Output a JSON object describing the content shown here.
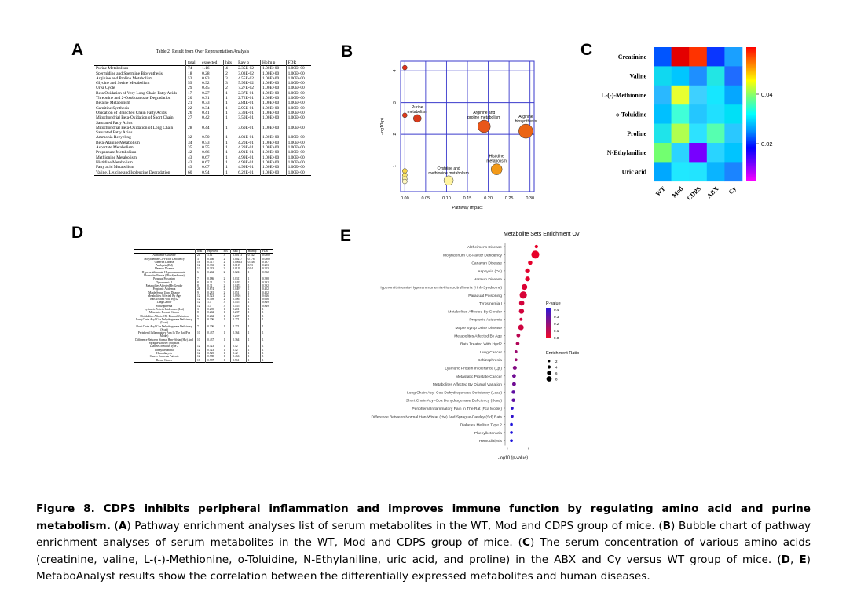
{
  "panels": {
    "a": "A",
    "b": "B",
    "c": "C",
    "d": "D",
    "e": "E"
  },
  "table_a": {
    "title": "Table 2: Result from Over Representation Analysis",
    "headers": [
      "",
      "total",
      "expected",
      "hits",
      "Raw p",
      "Holm p",
      "FDR"
    ],
    "rows": [
      [
        "Purine Metabolism",
        "74",
        "1.16",
        "4",
        "2.35E-02",
        "1.00E+00",
        "1.00E+00"
      ],
      [
        "Spermidine and Spermine Biosynthesis",
        "18",
        "0.28",
        "2",
        "3.03E-02",
        "1.00E+00",
        "1.00E+00"
      ],
      [
        "Arginine and Proline Metabolism",
        "53",
        "0.83",
        "3",
        "4.55E-02",
        "1.00E+00",
        "1.00E+00"
      ],
      [
        "Glycine and Serine Metabolism",
        "59",
        "0.92",
        "3",
        "5.95E-02",
        "1.00E+00",
        "1.00E+00"
      ],
      [
        "Urea Cycle",
        "29",
        "0.45",
        "2",
        "7.27E-02",
        "1.00E+00",
        "1.00E+00"
      ],
      [
        "Beta Oxidation of Very Long Chain Fatty Acids",
        "17",
        "0.27",
        "1",
        "2.37E-01",
        "1.00E+00",
        "1.00E+00"
      ],
      [
        "Threonine and 2-Oxobutanoate Degradation",
        "20",
        "0.31",
        "1",
        "2.72E-01",
        "1.00E+00",
        "1.00E+00"
      ],
      [
        "Betaine Metabolism",
        "21",
        "0.33",
        "1",
        "2.84E-01",
        "1.00E+00",
        "1.00E+00"
      ],
      [
        "Carnitine Synthesis",
        "22",
        "0.34",
        "1",
        "2.95E-01",
        "1.00E+00",
        "1.00E+00"
      ],
      [
        "Oxidation of Branched Chain Fatty Acids",
        "26",
        "0.41",
        "1",
        "3.39E-01",
        "1.00E+00",
        "1.00E+00"
      ],
      [
        "Mitochondrial Beta-Oxidation of Short Chain Saturated Fatty Acids",
        "27",
        "0.42",
        "1",
        "3.50E-01",
        "1.00E+00",
        "1.00E+00"
      ],
      [
        "Mitochondrial Beta-Oxidation of Long Chain Saturated Fatty Acids",
        "28",
        "0.44",
        "1",
        "3.60E-01",
        "1.00E+00",
        "1.00E+00"
      ],
      [
        "Ammonia Recycling",
        "32",
        "0.50",
        "1",
        "4.01E-01",
        "1.00E+00",
        "1.00E+00"
      ],
      [
        "Beta-Alanine Metabolism",
        "34",
        "0.53",
        "1",
        "4.20E-01",
        "1.00E+00",
        "1.00E+00"
      ],
      [
        "Aspartate Metabolism",
        "35",
        "0.55",
        "1",
        "4.29E-01",
        "1.00E+00",
        "1.00E+00"
      ],
      [
        "Propanoate Metabolism",
        "42",
        "0.66",
        "1",
        "4.91E-01",
        "1.00E+00",
        "1.00E+00"
      ],
      [
        "Methionine Metabolism",
        "43",
        "0.67",
        "1",
        "4.99E-01",
        "1.00E+00",
        "1.00E+00"
      ],
      [
        "Histidine Metabolism",
        "43",
        "0.67",
        "1",
        "4.99E-01",
        "1.00E+00",
        "1.00E+00"
      ],
      [
        "Fatty acid Metabolism",
        "43",
        "0.67",
        "1",
        "4.99E-01",
        "1.00E+00",
        "1.00E+00"
      ],
      [
        "Valine, Leucine and Isoleucine Degradation",
        "60",
        "0.94",
        "1",
        "6.22E-01",
        "1.00E+00",
        "1.00E+00"
      ]
    ]
  },
  "table_d": {
    "headers": [
      "",
      "total",
      "expected",
      "hits",
      "Raw p",
      "Holm p",
      "FDR"
    ],
    "rows": [
      [
        "Alzheimer's Disease",
        "21",
        "1.01",
        "3",
        "0.00173",
        "0.142",
        "0.0889"
      ],
      [
        "Molybdenum Co-Factor Deficiency",
        "3",
        "0.166",
        "2",
        "0.00217",
        "0.176",
        "0.0889"
      ],
      [
        "Canavan Disease",
        "16",
        "0.417",
        "2",
        "0.00683",
        "0.546",
        "0.187"
      ],
      [
        "Asphyxia (Dd)",
        "12",
        "0.333",
        "2",
        "0.0119",
        "0.93",
        "0.203"
      ],
      [
        "Harmup Disease",
        "12",
        "0.333",
        "2",
        "0.0119",
        "0.94",
        "0.203"
      ],
      [
        "Hyperornithinemia-Hyperammonemia-Homocitrullinuria (Hhh-Syndrome)",
        "6",
        "0.262",
        "2",
        "0.0241",
        "1",
        "0.332"
      ],
      [
        "Paraquat Poisoning",
        "7",
        "0.186",
        "2",
        "0.0311",
        "1",
        "0.388"
      ],
      [
        "Tyrosinemia I",
        "8",
        "0.31",
        "2",
        "0.0433",
        "1",
        "0.392"
      ],
      [
        "Metabolites Affected By Gender",
        "8",
        "0.31",
        "2",
        "0.0453",
        "1",
        "0.392"
      ],
      [
        "Propionic Acidemia",
        "26",
        "0.874",
        "2",
        "0.0497",
        "1",
        "0.402"
      ],
      [
        "Maple Syrup Urine Disease",
        "9",
        "0.281",
        "2",
        "0.051",
        "1",
        "0.402"
      ],
      [
        "Metabolites Affected By Age",
        "12",
        "0.523",
        "2",
        "0.0916",
        "1",
        "0.626"
      ],
      [
        "Rats Treated With Hgcl2",
        "12",
        "0.569",
        "2",
        "0.106",
        "1",
        "0.666"
      ],
      [
        "Lung Cancer",
        "12",
        "1.4",
        "3",
        "0.155",
        "1",
        "0.849"
      ],
      [
        "Schizophrenia",
        "12",
        "1.4",
        "3",
        "0.155",
        "1",
        "0.849"
      ],
      [
        "Lysinuric Protein Intolerance (Lpi)",
        "3",
        "0.239",
        "1",
        "0.201",
        "1",
        "1"
      ],
      [
        "Metastatic Prostate Cancer",
        "8",
        "0.262",
        "1",
        "0.237",
        "1",
        "1"
      ],
      [
        "Metabolites Affected By Diurnal Variation",
        "6",
        "0.262",
        "1",
        "0.237",
        "1",
        "1"
      ],
      [
        "Long Chain Acyl-Coa Dehydrogenase Deficiency (Lcad)",
        "7",
        "0.306",
        "1",
        "0.271",
        "1",
        "1"
      ],
      [
        "Short Chain Acyl-Coa Dehydrogenase Deficiency (Scad)",
        "7",
        "0.306",
        "1",
        "0.271",
        "1",
        "1"
      ],
      [
        "Peripheral Inflammatory Pain In The Rat (Fca Model)",
        "10",
        "0.437",
        "1",
        "0.364",
        "1",
        "1"
      ],
      [
        "Difference Between Normal Han-Wistar (Hw) And Sprague-Dawley (Sd) Rats",
        "10",
        "0.437",
        "1",
        "0.364",
        "1",
        "1"
      ],
      [
        "Diabetes Mellitus Type 2",
        "12",
        "0.523",
        "1",
        "0.42",
        "1",
        "1"
      ],
      [
        "Phenylketonuria",
        "12",
        "0.523",
        "1",
        "0.42",
        "1",
        "1"
      ],
      [
        "Hemodialysis",
        "12",
        "0.525",
        "1",
        "0.42",
        "1",
        "1"
      ],
      [
        "Cancer Cachexia Patients",
        "12",
        "0.788",
        "1",
        "0.466",
        "1",
        "1"
      ],
      [
        "Breast Cancer",
        "18",
        "0.787",
        "1",
        "0.561",
        "1",
        "1"
      ]
    ]
  },
  "chart_b": {
    "type": "scatter",
    "xlabel": "Pathway Impact",
    "ylabel": "-log10(p)",
    "x_ticks": [
      "0.00",
      "0.05",
      "0.10",
      "0.15",
      "0.20",
      "0.25",
      "0.30"
    ],
    "y_ticks": [
      "1",
      "2",
      "3",
      "4"
    ],
    "colors": {
      "high": "#d62e14",
      "mid": "#f07a12",
      "low": "#ffffa8",
      "point": "#e03a1a"
    },
    "points": [
      {
        "x": 0.0,
        "y": 4.1,
        "size": 3,
        "fill": "#e0301a",
        "label": ""
      },
      {
        "x": 0.0,
        "y": 2.6,
        "size": 3,
        "fill": "#e03b1a",
        "label": ""
      },
      {
        "x": 0.03,
        "y": 2.5,
        "size": 5,
        "fill": "#d93a1a",
        "label": "Purine metabolism"
      },
      {
        "x": 0.19,
        "y": 2.25,
        "size": 8,
        "fill": "#e8561a",
        "label": "Arginine and proline metabolism"
      },
      {
        "x": 0.29,
        "y": 2.1,
        "size": 9,
        "fill": "#eb6515",
        "label": "Arginine biosynthesis"
      },
      {
        "x": 0.22,
        "y": 0.9,
        "size": 7,
        "fill": "#f39a18",
        "label": "Histidine metabolism"
      },
      {
        "x": 0.105,
        "y": 0.55,
        "size": 6,
        "fill": "#fff4a0",
        "label": "Cysteine and methionine metabolism"
      },
      {
        "x": 0.0,
        "y": 0.85,
        "size": 3,
        "fill": "#f9d64a",
        "label": ""
      },
      {
        "x": 0.0,
        "y": 0.72,
        "size": 3,
        "fill": "#fde770",
        "label": ""
      },
      {
        "x": 0.0,
        "y": 0.6,
        "size": 3,
        "fill": "#fff2a0",
        "label": ""
      },
      {
        "x": 0.0,
        "y": 0.52,
        "size": 3,
        "fill": "#fff8c0",
        "label": ""
      }
    ]
  },
  "chart_c": {
    "type": "heatmap",
    "rows": [
      "Creatinine",
      "Valine",
      "L-(-)-Methionine",
      "o-Toluidine",
      "Proline",
      "N-Ethylaniline",
      "Uric acid"
    ],
    "cols": [
      "WT",
      "Mod",
      "CDPS",
      "ABX",
      "Cy"
    ],
    "colorbar_ticks": [
      "0.04",
      "0.02"
    ],
    "cells": [
      [
        "#0055ff",
        "#e40000",
        "#ff3300",
        "#0a36ff",
        "#1aa0ff"
      ],
      [
        "#10d8f0",
        "#00c6ff",
        "#1e8fff",
        "#22e6e4",
        "#1f6cff"
      ],
      [
        "#2ab8ff",
        "#e8ff30",
        "#3ed0ff",
        "#16e7ff",
        "#05a7ff"
      ],
      [
        "#00c0ff",
        "#40ffd8",
        "#24c6ff",
        "#20e0ff",
        "#00e0f6"
      ],
      [
        "#1fe4ea",
        "#b0ff50",
        "#2de2ff",
        "#56ffb0",
        "#2ac8ff"
      ],
      [
        "#72ff70",
        "#2bd4ff",
        "#7800ff",
        "#29d4ff",
        "#00c4ff"
      ],
      [
        "#00a8ff",
        "#20e8ff",
        "#22e4ff",
        "#0ab4ff",
        "#1b84ff"
      ]
    ]
  },
  "chart_e": {
    "type": "scatter",
    "title": "Metabolite Sets Enrichment Ov",
    "xlabel": "-log10 (p-value)",
    "legend_pvalue_title": "P-value",
    "legend_pvalue_ticks": [
      "0.4",
      "0.3",
      "0.2",
      "0.1",
      "0.0"
    ],
    "legend_size_title": "Enrichment Ratio",
    "legend_size_ticks": [
      "2",
      "4",
      "6",
      "8"
    ],
    "categories": [
      "Alzheimer's Disease",
      "Molybdenum Co-Factor Deficiency",
      "Canavan Disease",
      "Asphyxia (Dd)",
      "Harmup Disease",
      "Hyperornithinemia-Hyperammonemia-Homocitrullinuria (Hhh-Syndrome)",
      "Paraquat Poisoning",
      "Tyrosinemia I",
      "Metabolites Affected By Gender",
      "Propionic Acidemia",
      "Maple Syrup Urine Disease",
      "Metabolites Affected By Age",
      "Rats Treated With Hgcl2",
      "Lung Cancer",
      "Schizophrenia",
      "Lysinuric Protein Intolerance (Lpi)",
      "Metastatic Prostate Cancer",
      "Metabolites Affected By Diurnal Variation",
      "Long Chain Acyl-Coa Dehydrogenase Deficiency (Lcad)",
      "Short Chain Acyl-Coa Dehydrogenase Deficiency (Scad)",
      "Peripheral Inflammatory Pain In The Rat (Fca Model)",
      "Difference Between Normal Han-Wistar (Hw) And Sprague-Dawley (Sd) Rats",
      "Diabetes Mellitus Type 2",
      "Phenylketonuria",
      "Hemodialysis"
    ],
    "neglog10p": [
      2.76,
      2.66,
      2.17,
      1.92,
      1.92,
      1.62,
      1.51,
      1.36,
      1.34,
      1.3,
      1.29,
      1.04,
      0.97,
      0.81,
      0.81,
      0.7,
      0.63,
      0.63,
      0.57,
      0.57,
      0.44,
      0.44,
      0.38,
      0.38,
      0.38
    ],
    "pvalue": [
      0.0017,
      0.0022,
      0.0068,
      0.012,
      0.012,
      0.024,
      0.031,
      0.043,
      0.045,
      0.05,
      0.051,
      0.092,
      0.106,
      0.155,
      0.155,
      0.201,
      0.237,
      0.237,
      0.271,
      0.271,
      0.364,
      0.364,
      0.42,
      0.42,
      0.42
    ],
    "enrichment_ratio": [
      3.0,
      12.0,
      4.8,
      6.0,
      6.0,
      7.6,
      10.7,
      6.5,
      6.5,
      2.3,
      7.1,
      3.8,
      3.5,
      2.1,
      2.1,
      4.2,
      3.8,
      3.8,
      3.3,
      3.3,
      2.3,
      2.3,
      1.9,
      1.9,
      1.9
    ]
  },
  "caption": {
    "bold": "Figure 8. CDPS inhibits peripheral inflammation and improves immune function by regulating amino acid and purine metabolism.",
    "p1": " (",
    "A": "A",
    "t1": ") Pathway enrichment analyses list of serum metabolites in the WT, Mod and CDPS group of mice. (",
    "B": "B",
    "t2": ") Bubble chart of pathway enrichment analyses of serum metabolites in the WT, Mod and CDPS group of mice. (",
    "C": "C",
    "t3": ") The serum concentration of various amino acids (creatinine, valine, L-(-)-Methionine, o-Toluidine, N-Ethylaniline, uric acid, and proline) in the ABX and Cy versus WT group of mice. (",
    "D": "D",
    "t4": ", ",
    "E": "E",
    "t5": ") MetaboAnalyst results show the correlation between the differentially expressed metabolites and human diseases."
  }
}
